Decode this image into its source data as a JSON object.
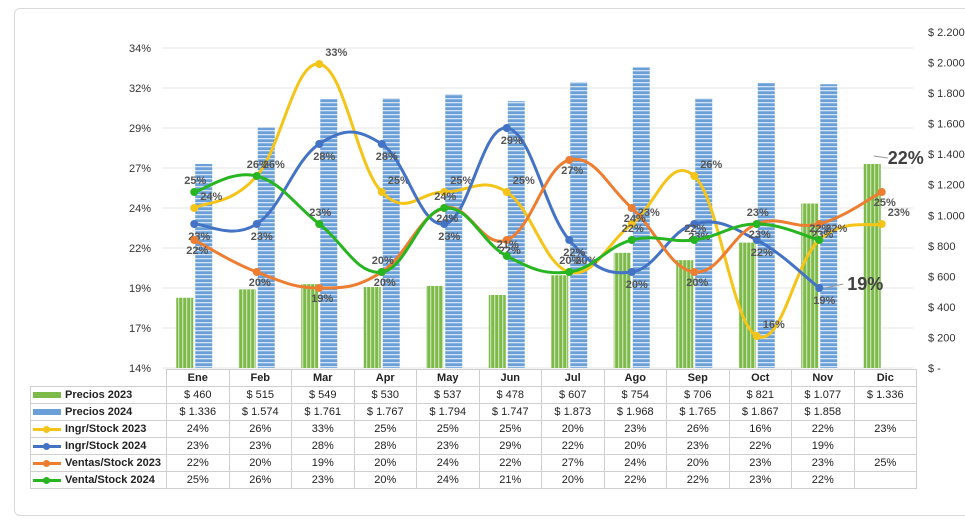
{
  "chart_data": {
    "type": "bar",
    "categories": [
      "Ene",
      "Feb",
      "Mar",
      "Apr",
      "May",
      "Jun",
      "Jul",
      "Ago",
      "Sep",
      "Oct",
      "Nov",
      "Dic"
    ],
    "left_axis": {
      "ticks": [
        "34%",
        "32%",
        "29%",
        "27%",
        "24%",
        "22%",
        "19%",
        "17%",
        "14%"
      ],
      "range": [
        14,
        34
      ]
    },
    "right_axis": {
      "ticks": [
        "$ 2.200",
        "$ 2.000",
        "$ 1.800",
        "$ 1.600",
        "$ 1.400",
        "$ 1.200",
        "$ 1.000",
        "$ 800",
        "$ 600",
        "$ 400",
        "$ 200",
        "$ -"
      ],
      "range": [
        0,
        2200
      ]
    },
    "bar_series": [
      {
        "name": "Precios 2023",
        "color": "#7dba4a",
        "values": [
          460,
          515,
          549,
          530,
          537,
          478,
          607,
          754,
          706,
          821,
          1077,
          1336
        ],
        "labels": [
          "$ 460",
          "$ 515",
          "$ 549",
          "$ 530",
          "$ 537",
          "$ 478",
          "$ 607",
          "$ 754",
          "$ 706",
          "$ 821",
          "$ 1.077",
          "$ 1.336"
        ]
      },
      {
        "name": "Precios 2024",
        "color": "#6a9fd8",
        "values": [
          1336,
          1574,
          1761,
          1767,
          1794,
          1747,
          1873,
          1968,
          1765,
          1867,
          1858,
          null
        ],
        "labels": [
          "$ 1.336",
          "$ 1.574",
          "$ 1.761",
          "$ 1.767",
          "$ 1.794",
          "$ 1.747",
          "$ 1.873",
          "$ 1.968",
          "$ 1.765",
          "$ 1.867",
          "$ 1.858",
          ""
        ]
      }
    ],
    "line_series": [
      {
        "name": "Ingr/Stock 2023",
        "color": "#f5c418",
        "values": [
          24,
          26,
          33,
          25,
          25,
          25,
          20,
          23,
          26,
          16,
          22,
          23
        ],
        "labels": [
          "24%",
          "26%",
          "33%",
          "25%",
          "25%",
          "25%",
          "20%",
          "23%",
          "26%",
          "16%",
          "22%",
          "23%"
        ]
      },
      {
        "name": "Ingr/Stock 2024",
        "color": "#4473c5",
        "values": [
          23,
          23,
          28,
          28,
          23,
          29,
          22,
          20,
          23,
          22,
          19,
          null
        ],
        "labels": [
          "23%",
          "23%",
          "28%",
          "28%",
          "23%",
          "29%",
          "22%",
          "20%",
          "23%",
          "22%",
          "19%",
          ""
        ]
      },
      {
        "name": "Ventas/Stock 2023",
        "color": "#ed7d31",
        "values": [
          22,
          20,
          19,
          20,
          24,
          22,
          27,
          24,
          20,
          23,
          23,
          25
        ],
        "labels": [
          "22%",
          "20%",
          "19%",
          "20%",
          "24%",
          "22%",
          "27%",
          "24%",
          "20%",
          "23%",
          "23%",
          "25%"
        ]
      },
      {
        "name": "Venta/Stock 2024",
        "color": "#27b522",
        "values": [
          25,
          26,
          23,
          20,
          24,
          21,
          20,
          22,
          22,
          23,
          22,
          null
        ],
        "labels": [
          "25%",
          "26%",
          "23%",
          "20%",
          "24%",
          "21%",
          "20%",
          "22%",
          "22%",
          "23%",
          "22%",
          ""
        ]
      }
    ],
    "callouts": [
      {
        "text": "22%",
        "month": "Dic",
        "series": "Venta/Stock 2024"
      },
      {
        "text": "19%",
        "month": "Nov",
        "series": "Ingr/Stock 2024"
      }
    ],
    "grid": true,
    "legend": "data-table-bottom"
  }
}
